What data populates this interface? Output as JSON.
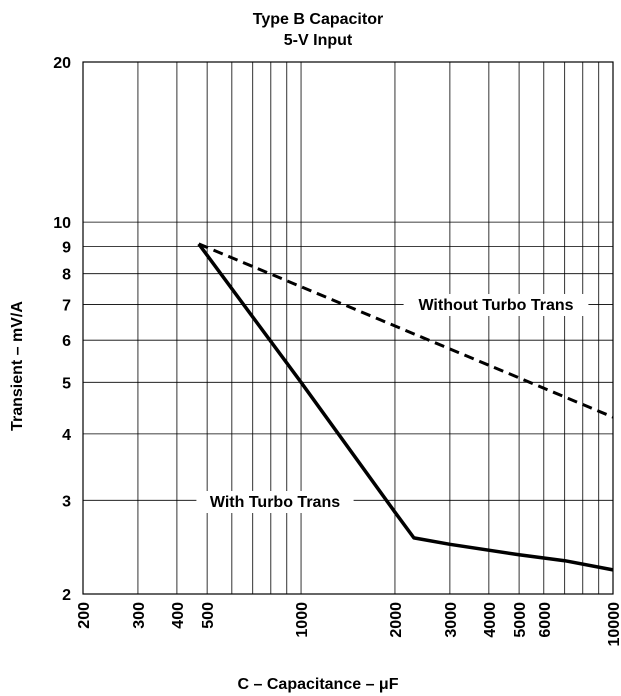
{
  "chart_data": {
    "type": "line",
    "title": "Type B Capacitor",
    "subtitle": "5-V Input",
    "xlabel": "C – Capacitance – μF",
    "ylabel": "Transient – mV/A",
    "x_scale": "log",
    "y_scale": "log",
    "xlim": [
      200,
      10000
    ],
    "ylim": [
      2,
      20
    ],
    "grid": true,
    "x_ticks": [
      200,
      300,
      400,
      500,
      1000,
      2000,
      3000,
      4000,
      5000,
      6000,
      10000
    ],
    "x_tick_labels": [
      "200",
      "300",
      "400",
      "500",
      "1000",
      "2000",
      "3000",
      "4000",
      "5000",
      "6000",
      "10000"
    ],
    "x_minor_gridlines": [
      600,
      700,
      800,
      900,
      7000,
      8000,
      9000
    ],
    "y_ticks": [
      2,
      3,
      4,
      5,
      6,
      7,
      8,
      9,
      10,
      20
    ],
    "y_tick_labels": [
      "2",
      "3",
      "4",
      "5",
      "6",
      "7",
      "8",
      "9",
      "10",
      "20"
    ],
    "series": [
      {
        "name": "Without Turbo Trans",
        "style": "dashed",
        "color": "#000000",
        "x": [
          470,
          10000
        ],
        "y": [
          9.1,
          4.3
        ]
      },
      {
        "name": "With Turbo Trans",
        "style": "solid",
        "color": "#000000",
        "x": [
          470,
          1000,
          2000,
          2300,
          3000,
          5000,
          7000,
          10000
        ],
        "y": [
          9.1,
          5.0,
          2.85,
          2.55,
          2.48,
          2.37,
          2.31,
          2.22
        ]
      }
    ],
    "annotations": [
      {
        "text": "Without Turbo Trans",
        "series": "Without Turbo Trans"
      },
      {
        "text": "With Turbo Trans",
        "series": "With Turbo Trans"
      }
    ]
  }
}
